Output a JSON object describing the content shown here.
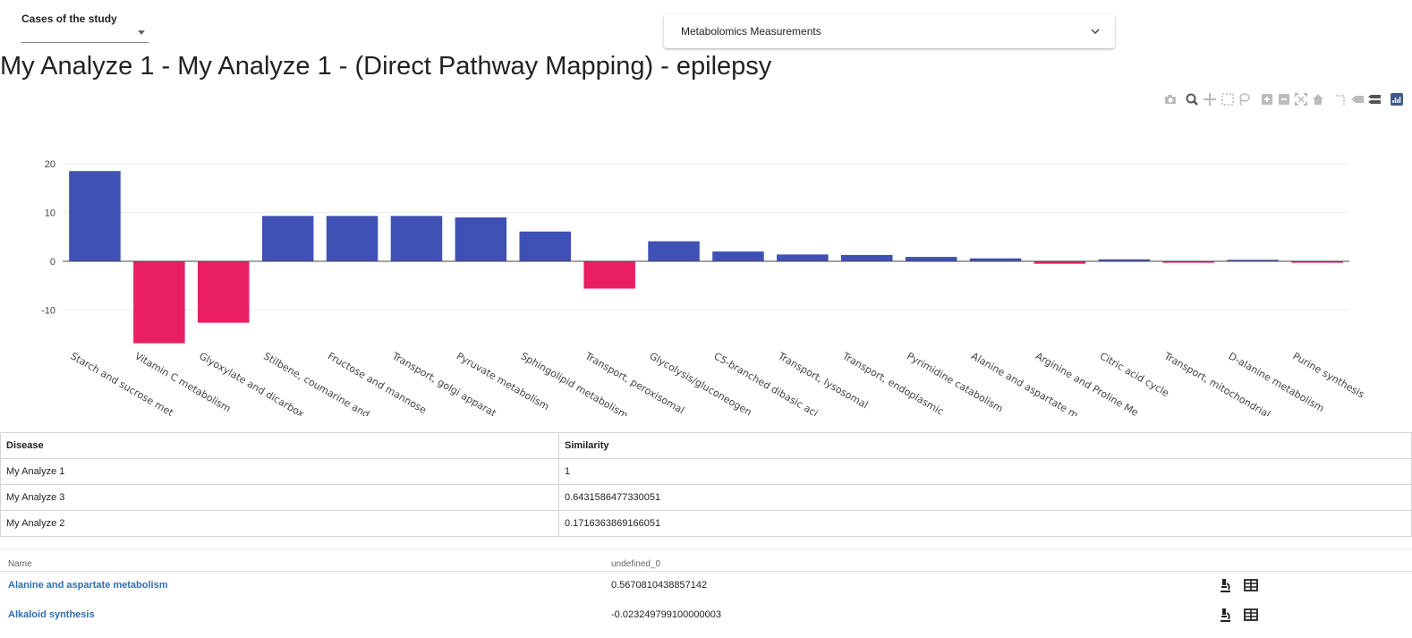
{
  "header": {
    "cases_label": "Cases of the study",
    "measurements_label": "Metabolomics Measurements",
    "title": "My Analyze 1 - My Analyze 1 - (Direct Pathway Mapping) - epilepsy"
  },
  "modebar": {
    "icons": [
      "camera-icon",
      "zoom-icon",
      "pan-icon",
      "box-select-icon",
      "lasso-icon",
      "zoom-in-icon",
      "zoom-out-icon",
      "autoscale-icon",
      "reset-axes-icon",
      "spike-lines-icon",
      "hover-closest-icon",
      "hover-compare-icon",
      "plotly-logo-icon"
    ]
  },
  "chart_data": {
    "type": "bar",
    "categories": [
      "Starch and sucrose met",
      "Vitamin C metabolism",
      "Glyoxylate and dicarbox",
      "Stilbene, coumarine and",
      "Fructose and mannose",
      "Transport, golgi apparat",
      "Pyruvate metabolism",
      "Sphingolipid metabolism",
      "Transport, peroxisomal",
      "Glycolysis/gluconeogen",
      "C5-branched dibasic aci",
      "Transport, lysosomal",
      "Transport, endoplasmic",
      "Pyrimidine catabolism",
      "Alanine and aspartate m",
      "Arginine and Proline Me",
      "Citric acid cycle",
      "Transport, mitochondrial",
      "D-alanine metabolism",
      "Purine synthesis"
    ],
    "values": [
      18.5,
      -16.8,
      -12.6,
      9.3,
      9.3,
      9.3,
      9.0,
      6.1,
      -5.6,
      4.1,
      2.0,
      1.4,
      1.3,
      0.9,
      0.6,
      -0.5,
      0.4,
      -0.3,
      0.3,
      -0.3
    ],
    "yticks": [
      20,
      10,
      0,
      -10
    ],
    "ylim": [
      -20,
      23
    ],
    "positive_color": "#3f51b5",
    "negative_color": "#e91e63",
    "grid": true
  },
  "similarity": {
    "headers": [
      "Disease",
      "Similarity"
    ],
    "rows": [
      [
        "My Analyze 1",
        "1"
      ],
      [
        "My Analyze 3",
        "0.6431586477330051"
      ],
      [
        "My Analyze 2",
        "0.1716363869166051"
      ]
    ]
  },
  "pathways": {
    "headers": [
      "Name",
      "undefined_0"
    ],
    "rows": [
      {
        "name": "Alanine and aspartate metabolism",
        "value": "0.5670810438857142"
      },
      {
        "name": "Alkaloid synthesis",
        "value": "-0.023249799100000003"
      }
    ]
  }
}
